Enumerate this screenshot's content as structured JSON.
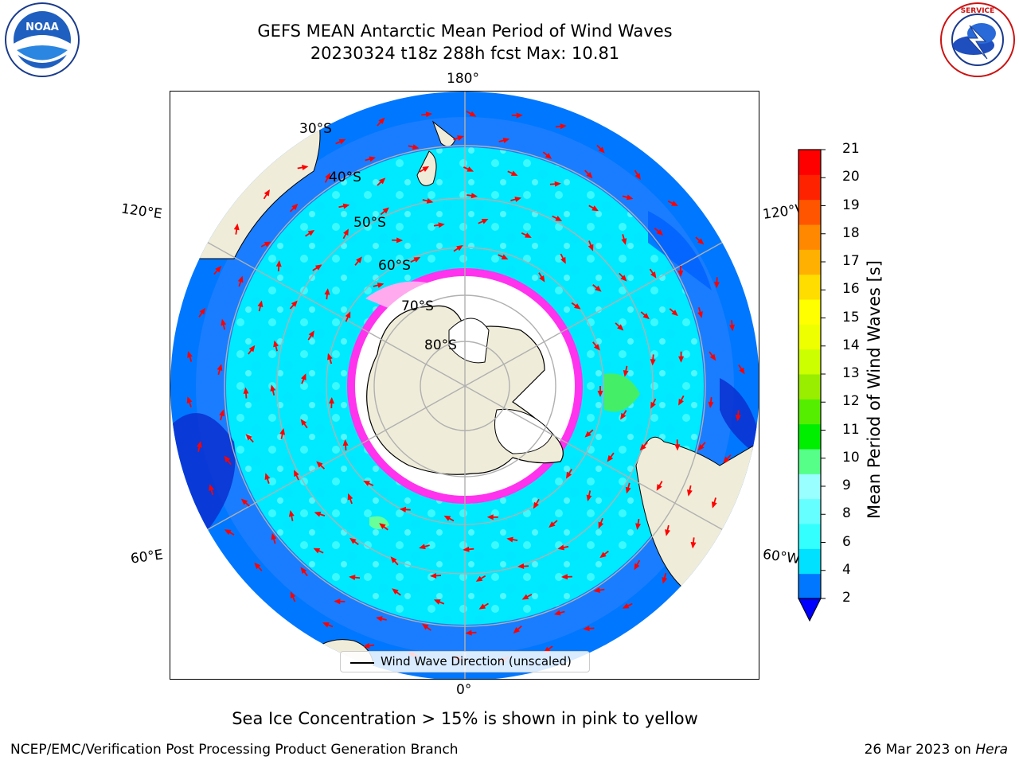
{
  "title": {
    "line1": "GEFS MEAN Antarctic Mean Period of Wind Waves",
    "line2": "20230324 t18z 288h fcst   Max: 10.81"
  },
  "logos": {
    "noaa": "NOAA",
    "nws": "NATIONAL WEATHER SERVICE"
  },
  "map": {
    "projection": "south-polar-stereographic",
    "longitude_labels": [
      "180°",
      "120°E",
      "120°W",
      "60°E",
      "60°W",
      "0°"
    ],
    "latitude_labels": [
      "30°S",
      "40°S",
      "50°S",
      "60°S",
      "70°S",
      "80°S"
    ],
    "legend_text": "Wind Wave Direction (unscaled)",
    "colors": {
      "ocean_dark_blue": "#0a3bd6",
      "ocean_blue": "#0077ff",
      "ocean_cyan": "#00eeff",
      "ocean_light_cyan": "#55ffff",
      "land": "#efecd9",
      "ice_white": "#ffffff",
      "ice_pink": "#ff33ee",
      "arrow": "#ff0000",
      "grid": "#b0b0b0"
    }
  },
  "colorbar": {
    "label": "Mean Period of Wind Waves [s]",
    "ticks": [
      "2",
      "4",
      "6",
      "8",
      "9",
      "10",
      "11",
      "12",
      "13",
      "14",
      "15",
      "16",
      "17",
      "18",
      "19",
      "20",
      "21"
    ],
    "colors": [
      "#0077ff",
      "#00e0ff",
      "#33ffff",
      "#66ffff",
      "#99ffff",
      "#55ff88",
      "#00ee00",
      "#55ee00",
      "#99ee00",
      "#ccff00",
      "#eeff00",
      "#ffff00",
      "#ffdd00",
      "#ffb000",
      "#ff8800",
      "#ff5500",
      "#ff2200",
      "#ff0000"
    ],
    "extend_color": "#0000ff"
  },
  "bottom_note": "Sea Ice Concentration > 15% is shown in pink to yellow",
  "footer": {
    "left": "NCEP/EMC/Verification Post Processing Product Generation Branch",
    "right_prefix": "26 Mar 2023 on ",
    "right_host": "Hera"
  }
}
